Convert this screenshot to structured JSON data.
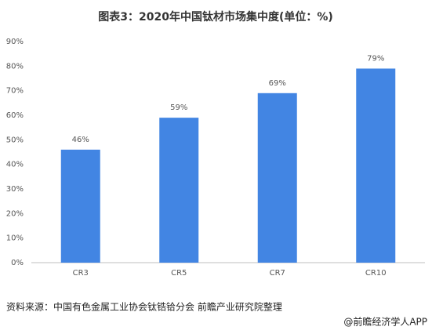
{
  "chart_data": {
    "type": "bar",
    "title": "图表3：2020年中国钛材市场集中度(单位：%)",
    "categories": [
      "CR3",
      "CR5",
      "CR7",
      "CR10"
    ],
    "values": [
      46,
      59,
      69,
      79
    ],
    "value_labels": [
      "46%",
      "59%",
      "69%",
      "79%"
    ],
    "color": "#4285e3",
    "ylim": [
      0,
      90
    ],
    "yticks": [
      {
        "value": 0,
        "label": "0%"
      },
      {
        "value": 10,
        "label": "10%"
      },
      {
        "value": 20,
        "label": "20%"
      },
      {
        "value": 30,
        "label": "30%"
      },
      {
        "value": 40,
        "label": "40%"
      },
      {
        "value": 50,
        "label": "50%"
      },
      {
        "value": 60,
        "label": "60%"
      },
      {
        "value": 70,
        "label": "70%"
      },
      {
        "value": 80,
        "label": "80%"
      },
      {
        "value": 90,
        "label": "90%"
      }
    ],
    "grid": false,
    "source": "资料来源：中国有色金属工业协会钛锆铪分会 前瞻产业研究院整理",
    "footer": "@前瞻经济学人APP"
  }
}
